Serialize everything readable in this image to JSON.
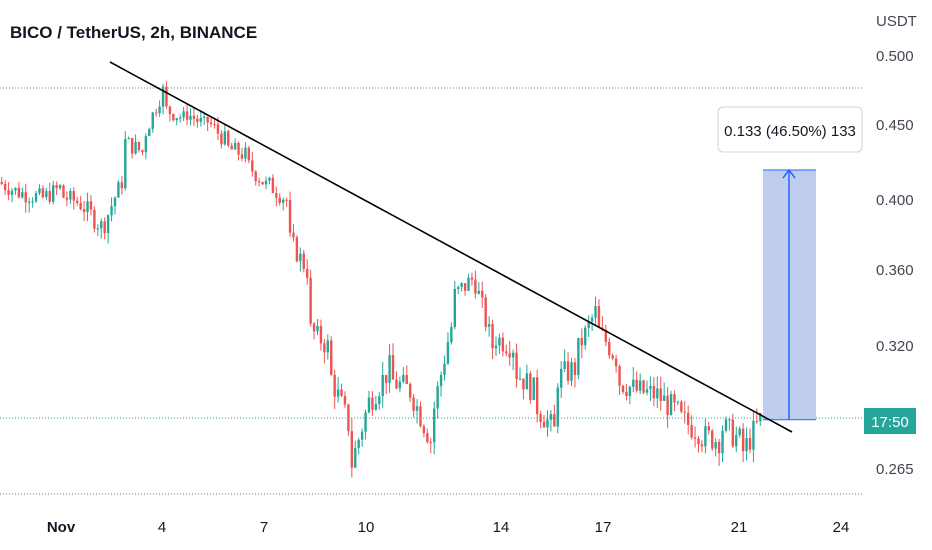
{
  "header": {
    "title": "BICO / TetherUS, 2h, BINANCE"
  },
  "chart_data": {
    "type": "candlestick",
    "symbol": "BICO / TetherUS",
    "interval": "2h",
    "exchange": "BINANCE",
    "y_unit": "USDT",
    "y_ticks": [
      "0.500",
      "0.450",
      "0.400",
      "0.360",
      "0.320",
      "0.265"
    ],
    "x_ticks": [
      "Nov",
      "4",
      "7",
      "10",
      "14",
      "17",
      "21",
      "24"
    ],
    "current_price_label": "17:50",
    "measure_label": "0.133 (46.50%) 133",
    "colors": {
      "up": "#26a69a",
      "down": "#ef5350",
      "measure_fill": "#b8c9ec",
      "measure_arrow": "#2962ff",
      "trendline": "#000000"
    },
    "trendline": {
      "from": [
        "Nov 3",
        0.485
      ],
      "to": [
        "Nov 22",
        0.283
      ]
    },
    "measure": {
      "from": 0.287,
      "to": 0.42,
      "change": 0.133,
      "percent": 46.5,
      "bars": 133
    },
    "price_path": [
      [
        0.412,
        0.405
      ],
      [
        0.405,
        0.402
      ],
      [
        0.4,
        0.408
      ],
      [
        0.403,
        0.398
      ],
      [
        0.398,
        0.385
      ],
      [
        0.382,
        0.412
      ],
      [
        0.44,
        0.432
      ],
      [
        0.44,
        0.475
      ],
      [
        0.462,
        0.455
      ],
      [
        0.46,
        0.45
      ],
      [
        0.455,
        0.44
      ],
      [
        0.435,
        0.43
      ],
      [
        0.425,
        0.41
      ],
      [
        0.412,
        0.4
      ],
      [
        0.38,
        0.36
      ],
      [
        0.33,
        0.32
      ],
      [
        0.31,
        0.285
      ],
      [
        0.262,
        0.295
      ],
      [
        0.295,
        0.31
      ],
      [
        0.305,
        0.3
      ],
      [
        0.3,
        0.278
      ],
      [
        0.285,
        0.33
      ],
      [
        0.345,
        0.355
      ],
      [
        0.36,
        0.32
      ],
      [
        0.325,
        0.32
      ],
      [
        0.31,
        0.3
      ],
      [
        0.295,
        0.282
      ],
      [
        0.305,
        0.31
      ],
      [
        0.315,
        0.338
      ],
      [
        0.33,
        0.315
      ],
      [
        0.305,
        0.3
      ],
      [
        0.3,
        0.298
      ],
      [
        0.298,
        0.29
      ],
      [
        0.288,
        0.282
      ],
      [
        0.28,
        0.278
      ],
      [
        0.285,
        0.278
      ],
      [
        0.27,
        0.287
      ]
    ]
  }
}
